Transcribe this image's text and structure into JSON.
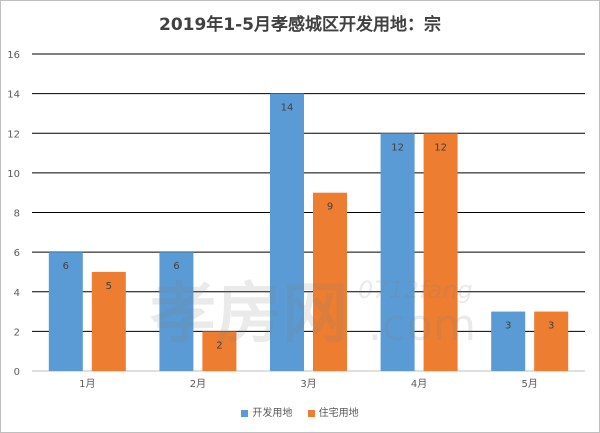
{
  "chart_data": {
    "type": "bar",
    "title": "2019年1-5月孝感城区开发用地：宗",
    "categories": [
      "1月",
      "2月",
      "3月",
      "4月",
      "5月"
    ],
    "series": [
      {
        "name": "开发用地",
        "values": [
          6,
          6,
          14,
          12,
          3
        ],
        "color": "#5b9bd5"
      },
      {
        "name": "住宅用地",
        "values": [
          5,
          2,
          9,
          12,
          3
        ],
        "color": "#ed7d31"
      }
    ],
    "ylim": [
      0,
      16
    ],
    "yticks": [
      0,
      2,
      4,
      6,
      8,
      10,
      12,
      14,
      16
    ],
    "grid": true,
    "legend_position": "bottom",
    "data_labels": true
  },
  "watermark": {
    "text_cn": "孝房网",
    "text_url": "0712fang",
    "text_domain": ".com"
  }
}
